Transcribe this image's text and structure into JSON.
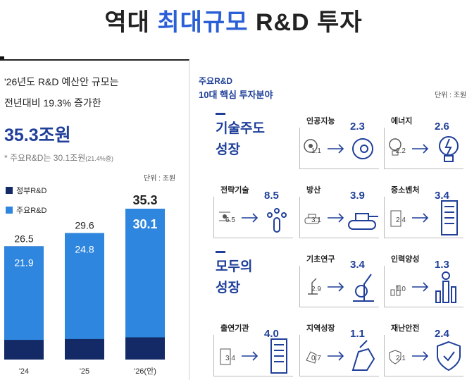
{
  "title": {
    "prefix": "역대",
    "highlight": "최대규모",
    "suffix": "R&D 투자"
  },
  "left": {
    "intro_line1": "'26년도 R&D 예산안 규모는",
    "intro_line2": "전년대비 19.3% 증가한",
    "total": "35.3조원",
    "note_main": "* 주요R&D는 30.1조원",
    "note_small": "(21.4%증)",
    "unit": "단위 : 조원",
    "legend": {
      "gov": "정부R&D",
      "major": "주요R&D"
    }
  },
  "right": {
    "header_line1": "주요R&D",
    "header_line2": "10대 핵심 투자분야",
    "unit": "단위 : 조원",
    "groups": [
      {
        "label_line1": "기술주도",
        "label_line2": "성장"
      },
      {
        "label_line1": "모두의",
        "label_line2": "성장"
      }
    ],
    "fields": [
      {
        "name": "인공지능",
        "prev": "1.1",
        "curr": "2.3",
        "icon": "ai-head-icon"
      },
      {
        "name": "에너지",
        "prev": "2.2",
        "curr": "2.6",
        "icon": "lightbulb-icon"
      },
      {
        "name": "전략기술",
        "prev": "6.5",
        "curr": "8.5",
        "icon": "chip-touch-icon"
      },
      {
        "name": "방산",
        "prev": "3.1",
        "curr": "3.9",
        "icon": "tank-icon"
      },
      {
        "name": "중소벤처",
        "prev": "2.4",
        "curr": "3.4",
        "icon": "building-icon"
      },
      {
        "name": "기초연구",
        "prev": "2.9",
        "curr": "3.4",
        "icon": "microscope-icon"
      },
      {
        "name": "인력양성",
        "prev": "1.0",
        "curr": "1.3",
        "icon": "person-bars-icon"
      },
      {
        "name": "출연기관",
        "prev": "3.4",
        "curr": "4.0",
        "icon": "building-icon"
      },
      {
        "name": "지역성장",
        "prev": "0.7",
        "curr": "1.1",
        "icon": "region-map-icon"
      },
      {
        "name": "재난안전",
        "prev": "2.1",
        "curr": "2.4",
        "icon": "shield-check-icon"
      }
    ]
  },
  "colors": {
    "gov": "#142a66",
    "major": "#2e86de",
    "accent": "#1f3f99"
  },
  "chart_data": {
    "type": "bar",
    "categories": [
      "'24",
      "'25",
      "'26(안)"
    ],
    "series": [
      {
        "name": "정부R&D",
        "values": [
          26.5,
          29.6,
          35.3
        ]
      },
      {
        "name": "주요R&D",
        "values": [
          21.9,
          24.8,
          30.1
        ]
      }
    ],
    "ylim": [
      0,
      35.3
    ],
    "legend": "top-left"
  }
}
